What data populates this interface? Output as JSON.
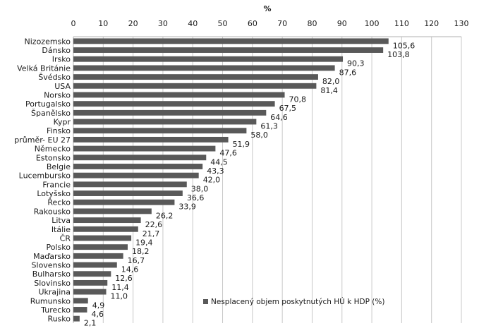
{
  "chart_data": {
    "type": "bar",
    "orientation": "horizontal",
    "title": "",
    "xlabel": "%",
    "ylabel": "",
    "xlim": [
      0,
      130
    ],
    "xticks": [
      0,
      10,
      20,
      30,
      40,
      50,
      60,
      70,
      80,
      90,
      100,
      110,
      120,
      130
    ],
    "x_axis_position": "top",
    "grid": "vertical",
    "legend_position": "bottom-right",
    "bar_color": "#595959",
    "categories": [
      "Nizozemsko",
      "Dánsko",
      "Irsko",
      "Velká Británie",
      "Švédsko",
      "USA",
      "Norsko",
      "Portugalsko",
      "Španělsko",
      "Kypr",
      "Finsko",
      "průměr- EU 27",
      "Německo",
      "Estonsko",
      "Belgie",
      "Lucembursko",
      "Francie",
      "Lotyšsko",
      "Řecko",
      "Rakousko",
      "Litva",
      "Itálie",
      "ČR",
      "Polsko",
      "Maďarsko",
      "Slovensko",
      "Bulharsko",
      "Slovinsko",
      "Ukrajina",
      "Rumunsko",
      "Turecko",
      "Rusko"
    ],
    "series": [
      {
        "name": "Nesplacený objem poskytnutých HÚ k HDP (%)",
        "values": [
          105.6,
          103.8,
          90.3,
          87.6,
          82.0,
          81.4,
          70.8,
          67.5,
          64.6,
          61.3,
          58.0,
          51.9,
          47.6,
          44.5,
          43.3,
          42.0,
          38.0,
          36.6,
          33.9,
          26.2,
          22.6,
          21.7,
          19.4,
          18.2,
          16.7,
          14.6,
          12.6,
          11.4,
          11.0,
          4.9,
          4.6,
          2.1
        ],
        "labels": [
          "105,6",
          "103,8",
          "90,3",
          "87,6",
          "82,0",
          "81,4",
          "70,8",
          "67,5",
          "64,6",
          "61,3",
          "58,0",
          "51,9",
          "47,6",
          "44,5",
          "43,3",
          "42,0",
          "38,0",
          "36,6",
          "33,9",
          "26,2",
          "22,6",
          "21,7",
          "19,4",
          "18,2",
          "16,7",
          "14,6",
          "12,6",
          "11,4",
          "11,0",
          "4,9",
          "4,6",
          "2,1"
        ]
      }
    ]
  }
}
